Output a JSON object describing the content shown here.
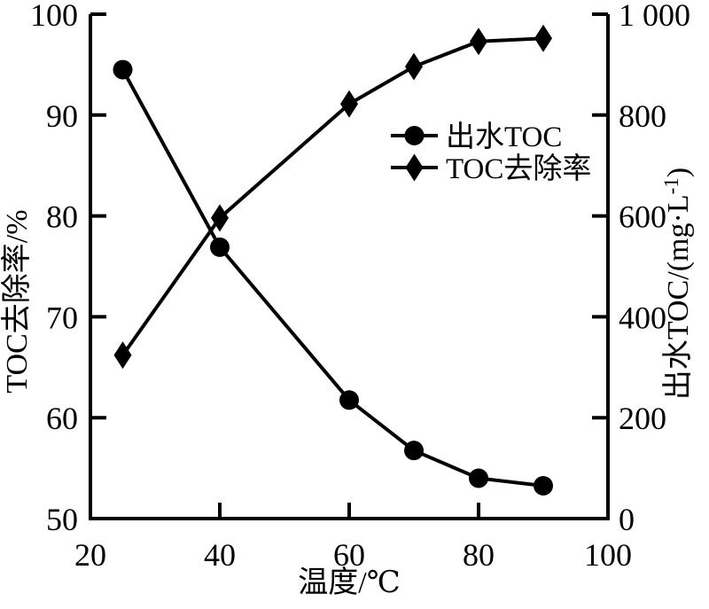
{
  "figure": {
    "background": "#ffffff",
    "ink": "#000000"
  },
  "chart_data": {
    "type": "line",
    "title": "",
    "x": [
      25,
      40,
      60,
      70,
      80,
      90
    ],
    "series": [
      {
        "name": "出水TOC",
        "axis": "right",
        "marker": "circle",
        "values": [
          890,
          538,
          235,
          135,
          80,
          65
        ]
      },
      {
        "name": "TOC去除率",
        "axis": "left",
        "marker": "diamond",
        "values": [
          66.2,
          79.8,
          91.1,
          94.8,
          97.3,
          97.6
        ]
      }
    ],
    "x_axis": {
      "title": "温度/℃",
      "range": [
        20,
        100
      ],
      "ticks": [
        40,
        60,
        80
      ],
      "label_positions": [
        20,
        40,
        60,
        80,
        100
      ],
      "tick_labels": [
        "20",
        "40",
        "60",
        "80",
        "100"
      ]
    },
    "left_axis": {
      "title": "TOC去除率/%",
      "range": [
        50,
        100
      ],
      "ticks": [
        100,
        90,
        80,
        70,
        60,
        50
      ],
      "tick_labels": [
        "100",
        "90",
        "80",
        "70",
        "60",
        "50"
      ]
    },
    "right_axis": {
      "title": "出水TOC/(mg·L⁻¹)",
      "range": [
        0,
        1000
      ],
      "ticks": [
        1000,
        800,
        600,
        400,
        200,
        0
      ],
      "tick_labels": [
        "1 000",
        "800",
        "600",
        "400",
        "200",
        "0"
      ]
    },
    "legend": [
      {
        "label": "出水TOC",
        "marker": "circle"
      },
      {
        "label": "TOC去除率",
        "marker": "diamond"
      }
    ],
    "grid": false,
    "legend_position": "inside-upper-right"
  }
}
